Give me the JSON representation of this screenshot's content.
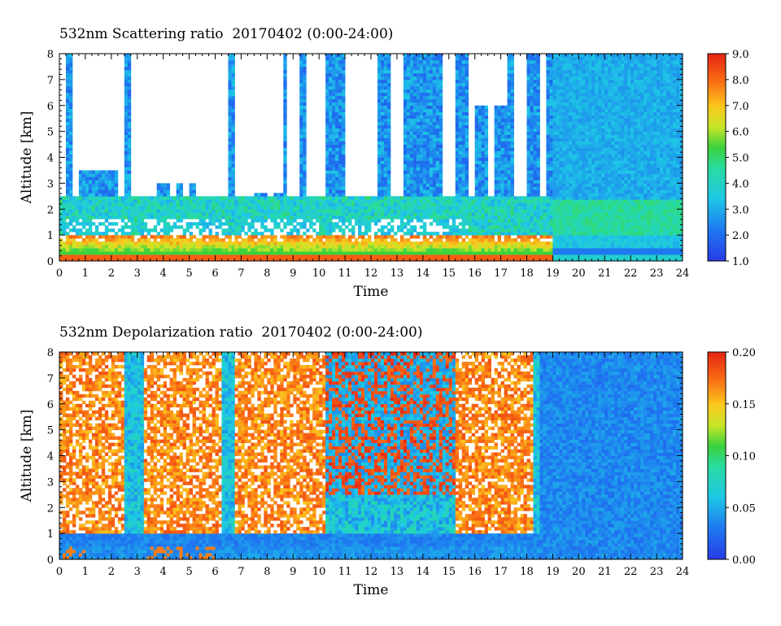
{
  "charts": [
    {
      "title": "532nm Scattering ratio  20170402 (0:00-24:00)",
      "colorbar_ticks": [
        "9.0",
        "8.0",
        "7.0",
        "6.0",
        "5.0",
        "4.0",
        "3.0",
        "2.0",
        "1.0"
      ]
    },
    {
      "title": "532nm Depolarization ratio  20170402 (0:00-24:00)",
      "colorbar_ticks": [
        "0.20",
        "0.15",
        "0.10",
        "0.05",
        "0.00"
      ]
    }
  ],
  "chart_data": [
    {
      "type": "heatmap",
      "title": "532nm Scattering ratio  20170402 (0:00-24:00)",
      "xlabel": "Time",
      "ylabel": "Altitude [km]",
      "xlim": [
        0,
        24
      ],
      "ylim": [
        0,
        8
      ],
      "x_ticks": [
        0,
        1,
        2,
        3,
        4,
        5,
        6,
        7,
        8,
        9,
        10,
        11,
        12,
        13,
        14,
        15,
        16,
        17,
        18,
        19,
        20,
        21,
        22,
        23,
        24
      ],
      "y_ticks": [
        0,
        1,
        2,
        3,
        4,
        5,
        6,
        7,
        8
      ],
      "colorbar": {
        "min": 1.0,
        "max": 9.0,
        "ticks": [
          1.0,
          2.0,
          3.0,
          4.0,
          5.0,
          6.0,
          7.0,
          8.0,
          9.0
        ],
        "colormap": "rainbow (blue-cyan-green-yellow-red), white = saturated/cloud"
      },
      "features": [
        {
          "description": "strong scattering boundary layer near 0.5-1.0 km",
          "time_range": [
            0,
            19
          ],
          "altitude_km": [
            0.3,
            1.2
          ],
          "ratio": 7.5
        },
        {
          "description": "aerosol layer",
          "time_range": [
            19,
            24
          ],
          "altitude_km": [
            1.0,
            2.3
          ],
          "ratio": 4.0
        },
        {
          "description": "upper troposphere background",
          "time_range": [
            19,
            24
          ],
          "altitude_km": [
            2.5,
            8
          ],
          "ratio": 2.8
        },
        {
          "description": "clouds (white, saturated)",
          "time_range": [
            0,
            16
          ],
          "altitude_km": [
            0.5,
            2.5
          ],
          "ratio": 9.0
        },
        {
          "description": "vertical streaks of moderate scattering",
          "time_range": [
            2.5,
            19
          ],
          "altitude_km": [
            1,
            8
          ],
          "ratio": 2.0
        }
      ]
    },
    {
      "type": "heatmap",
      "title": "532nm Depolarization ratio  20170402 (0:00-24:00)",
      "xlabel": "Time",
      "ylabel": "Altitude [km]",
      "xlim": [
        0,
        24
      ],
      "ylim": [
        0,
        8
      ],
      "x_ticks": [
        0,
        1,
        2,
        3,
        4,
        5,
        6,
        7,
        8,
        9,
        10,
        11,
        12,
        13,
        14,
        15,
        16,
        17,
        18,
        19,
        20,
        21,
        22,
        23,
        24
      ],
      "y_ticks": [
        0,
        1,
        2,
        3,
        4,
        5,
        6,
        7,
        8
      ],
      "colorbar": {
        "min": 0.0,
        "max": 0.2,
        "ticks": [
          0.0,
          0.05,
          0.1,
          0.15,
          0.2
        ],
        "colormap": "rainbow (blue-cyan-green-yellow-red), white = saturated"
      },
      "features": [
        {
          "description": "high depolarization (noise/ice) columns",
          "time_range": [
            0,
            6
          ],
          "altitude_km": [
            1,
            8
          ],
          "ratio": 0.2
        },
        {
          "description": "high depolarization streaks",
          "time_range": [
            6,
            18.5
          ],
          "altitude_km": [
            2,
            8
          ],
          "ratio": 0.15
        },
        {
          "description": "low depolarization boundary layer",
          "time_range": [
            0,
            24
          ],
          "altitude_km": [
            0,
            1
          ],
          "ratio": 0.02
        },
        {
          "description": "calm background",
          "time_range": [
            19,
            24
          ],
          "altitude_km": [
            0,
            8
          ],
          "ratio": 0.03
        }
      ]
    }
  ]
}
